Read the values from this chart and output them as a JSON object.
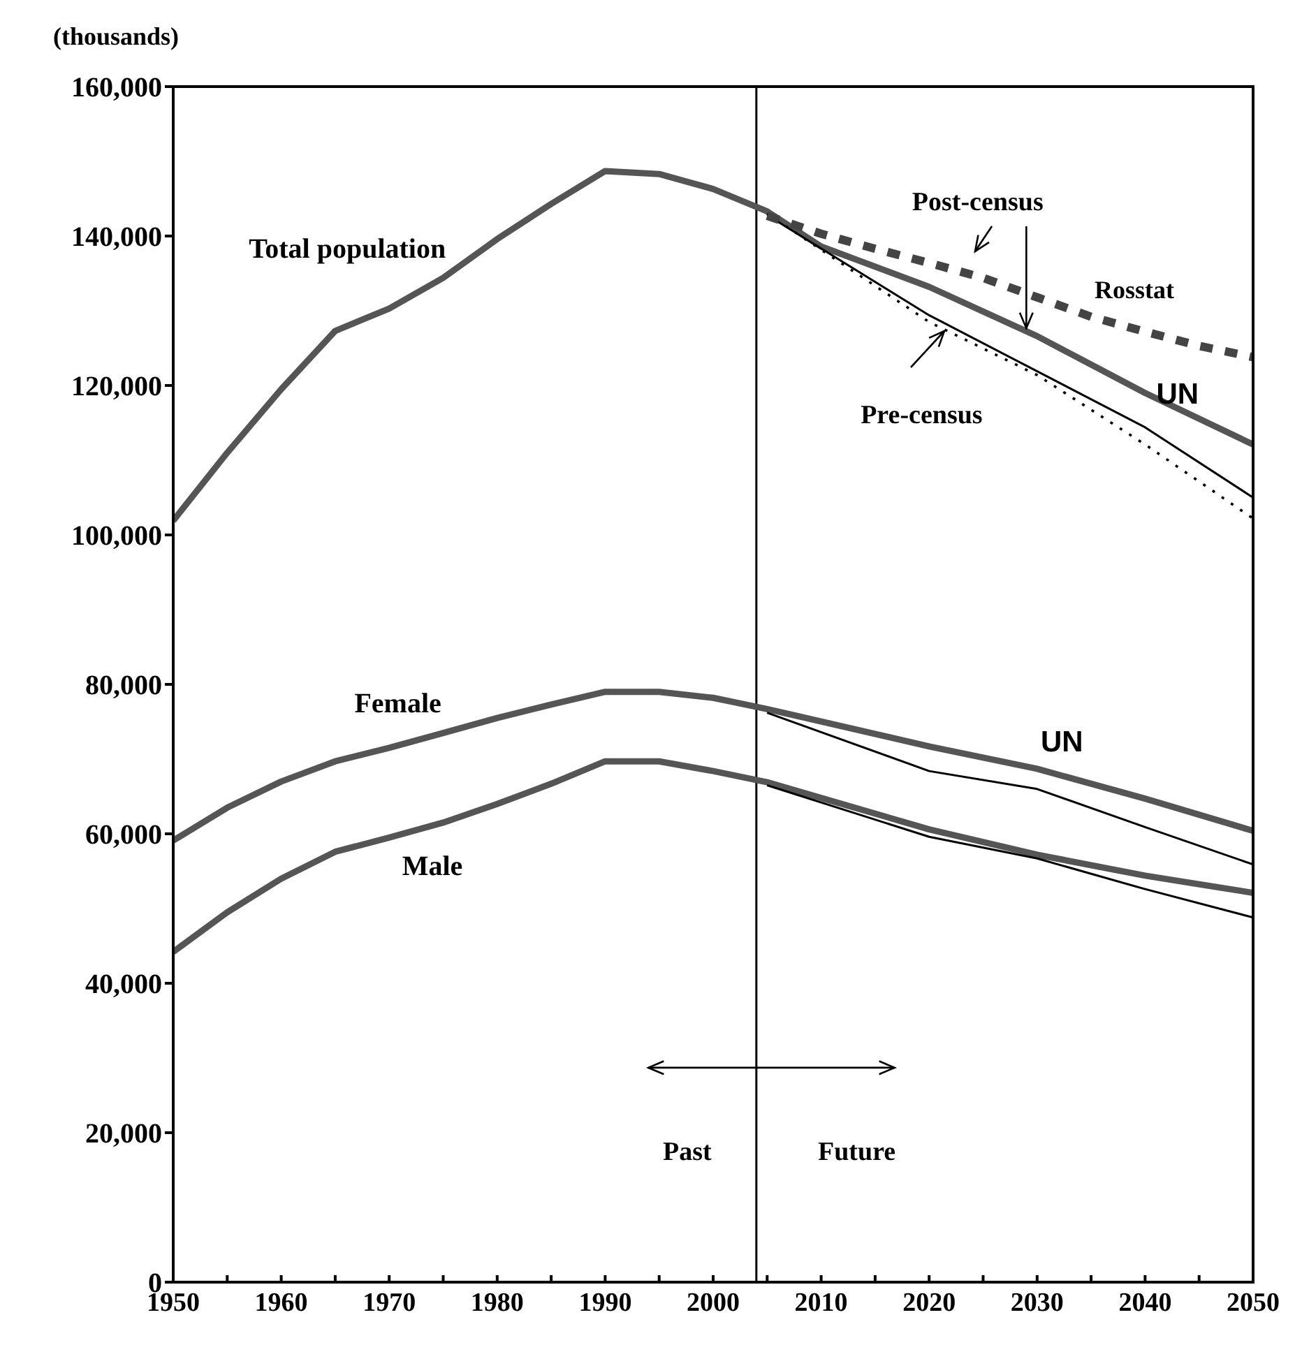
{
  "chart_data": {
    "type": "line",
    "ylabel": "(thousands)",
    "xlim": [
      1950,
      2050
    ],
    "xticks": [
      1950,
      {
        "value": 1955,
        "label": null
      },
      1960,
      {
        "value": 1965,
        "label": null
      },
      1970,
      {
        "value": 1975,
        "label": null
      },
      1980,
      {
        "value": 1985,
        "label": null
      },
      1990,
      {
        "value": 1995,
        "label": null
      },
      2000,
      {
        "value": 2005,
        "label": null
      },
      2010,
      {
        "value": 2015,
        "label": null
      },
      2020,
      {
        "value": 2025,
        "label": null
      },
      2030,
      {
        "value": 2035,
        "label": null
      },
      2040,
      {
        "value": 2045,
        "label": null
      },
      2050
    ],
    "ylim": [
      0,
      160000
    ],
    "yticks": [
      0,
      {
        "value": 20000,
        "label": "20,000"
      },
      {
        "value": 40000,
        "label": "40,000"
      },
      {
        "value": 60000,
        "label": "60,000"
      },
      {
        "value": 80000,
        "label": "80,000"
      },
      {
        "value": 100000,
        "label": "100,000"
      },
      {
        "value": 120000,
        "label": "120,000"
      },
      {
        "value": 140000,
        "label": "140,000"
      },
      {
        "value": 160000,
        "label": "160,000"
      }
    ],
    "series": [
      {
        "color": "#555555",
        "line_style": "solid",
        "x": [
          1950,
          1955,
          1960,
          1965,
          1970,
          1975,
          1980,
          1985,
          1990,
          1995,
          2000,
          2005,
          2010,
          2020,
          2030,
          2040,
          2050
        ],
        "values": [
          101900,
          111000,
          119500,
          127300,
          130300,
          134400,
          139600,
          144300,
          148700,
          148300,
          146300,
          143300,
          138600,
          133200,
          126600,
          119000,
          112100
        ]
      },
      {
        "color": "#000000",
        "line_style": "solid",
        "x": [
          2005,
          2020,
          2030,
          2040,
          2050
        ],
        "values": [
          142800,
          129400,
          121900,
          114400,
          105000
        ]
      },
      {
        "color": "#000000",
        "line_style": "dotted",
        "x": [
          2005,
          2020,
          2030,
          2040,
          2050
        ],
        "values": [
          143000,
          128500,
          121400,
          112100,
          102200
        ]
      },
      {
        "color": "#444444",
        "line_style": "dashed",
        "x": [
          2005,
          2010,
          2015,
          2020,
          2025,
          2030,
          2035,
          2040,
          2045,
          2050
        ],
        "values": [
          142700,
          140300,
          138300,
          136400,
          134400,
          131800,
          129200,
          127200,
          125300,
          123800
        ]
      },
      {
        "color": "#555555",
        "line_style": "solid",
        "x": [
          1950,
          1955,
          1960,
          1965,
          1970,
          1975,
          1980,
          1985,
          1990,
          1995,
          2000,
          2005,
          2020,
          2030,
          2040,
          2050
        ],
        "values": [
          59100,
          63500,
          67000,
          69700,
          71500,
          73500,
          75500,
          77300,
          79000,
          79000,
          78200,
          76700,
          71700,
          68700,
          64700,
          60400
        ]
      },
      {
        "color": "#000000",
        "line_style": "solid",
        "x": [
          2005,
          2020,
          2030,
          2040,
          2050
        ],
        "values": [
          76200,
          68400,
          66000,
          60900,
          55900
        ]
      },
      {
        "color": "#555555",
        "line_style": "solid",
        "x": [
          1950,
          1955,
          1960,
          1965,
          1970,
          1975,
          1980,
          1985,
          1990,
          1995,
          2000,
          2005,
          2020,
          2030,
          2040,
          2050
        ],
        "values": [
          44200,
          49500,
          54000,
          57600,
          59500,
          61500,
          64000,
          66700,
          69700,
          69700,
          68400,
          66900,
          60600,
          57200,
          54400,
          52100
        ]
      },
      {
        "color": "#000000",
        "line_style": "solid",
        "x": [
          2005,
          2020,
          2030,
          2040,
          2050
        ],
        "values": [
          66500,
          59600,
          56700,
          52600,
          48800
        ]
      }
    ],
    "ref_lines": [
      {
        "axis": "x",
        "value": 2004,
        "color": "#000000"
      }
    ],
    "annotations": [
      "Total population",
      {
        "text": "Post-census",
        "x": 2029,
        "y": 127300
      },
      "Rosstat",
      "UN",
      "Pre-census",
      "Female",
      "Male",
      "UN",
      "Past",
      "Future"
    ]
  }
}
